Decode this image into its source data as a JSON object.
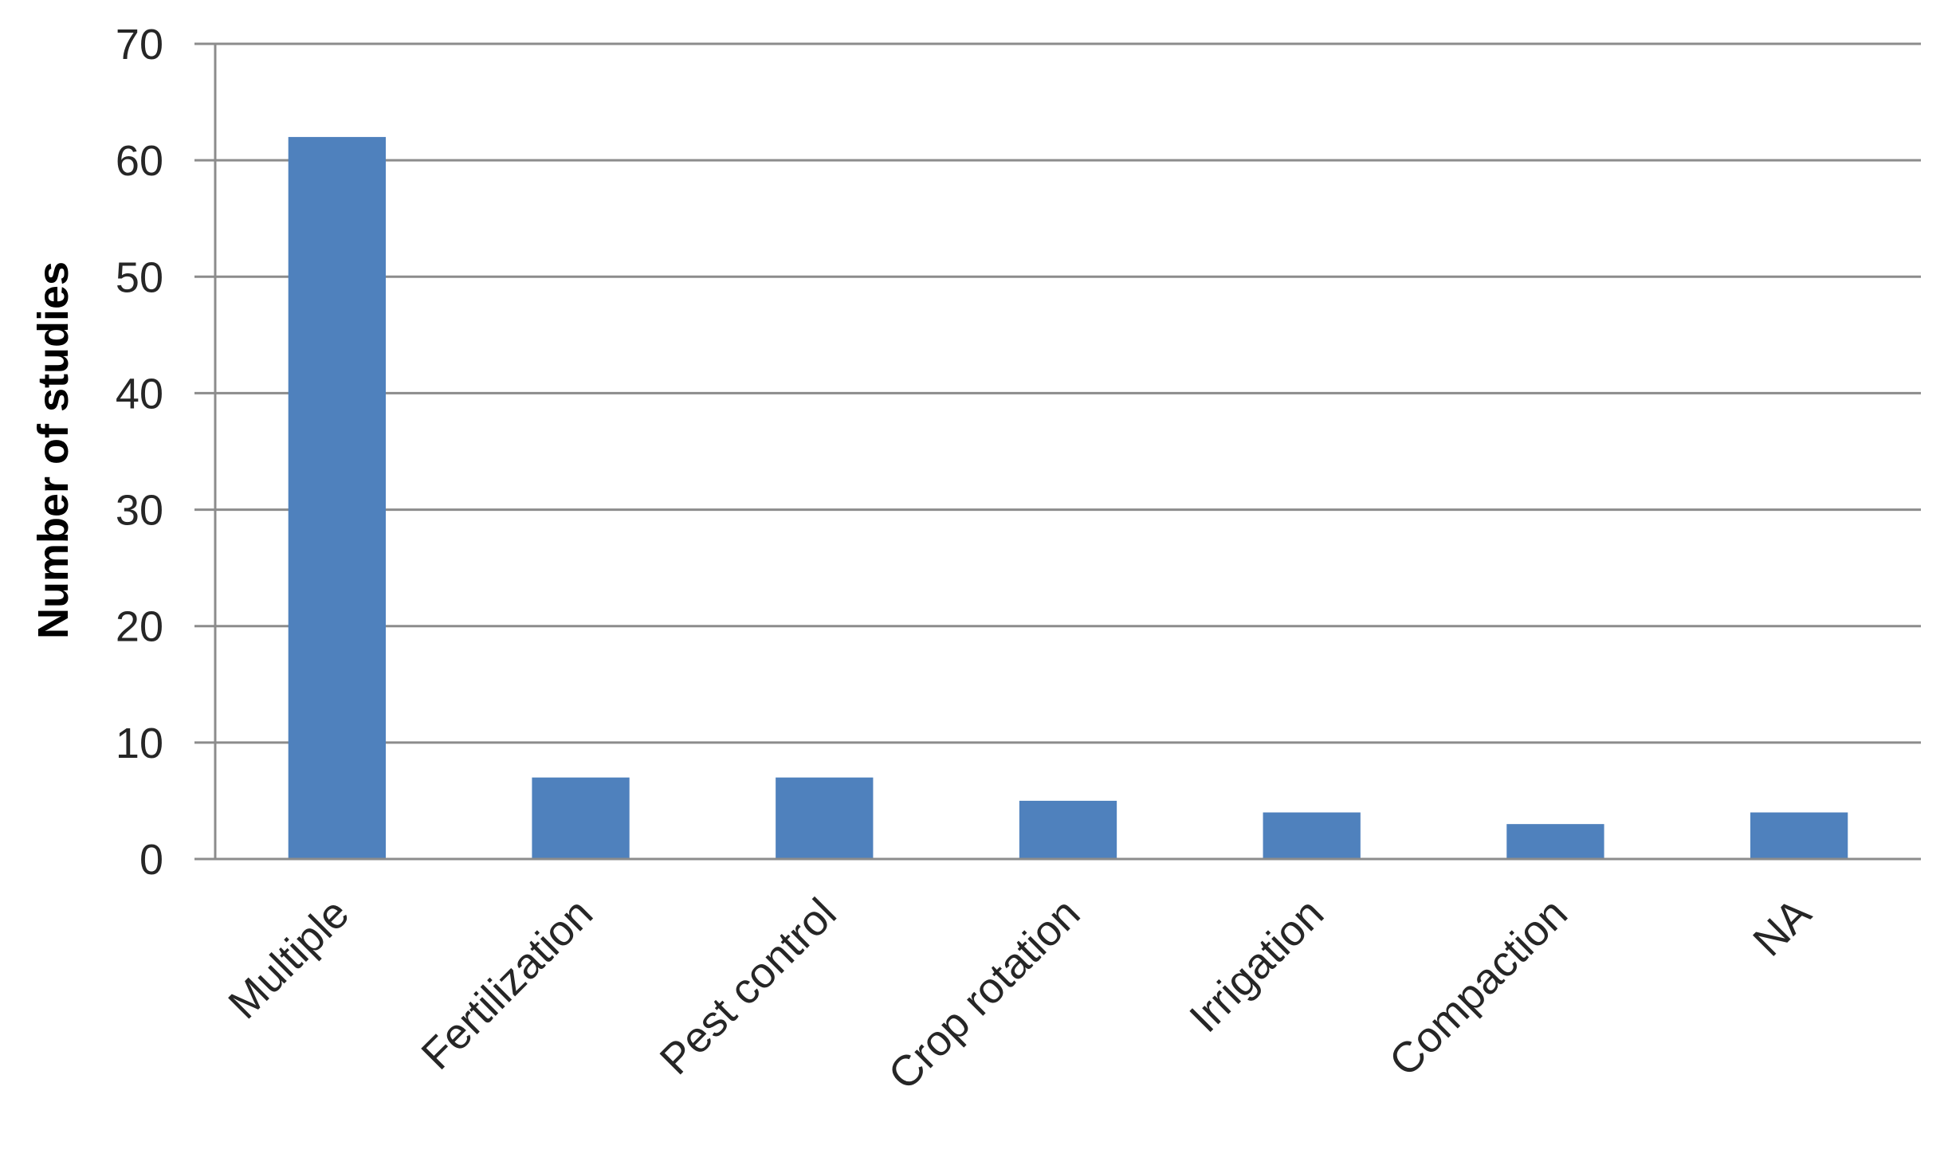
{
  "chart_data": {
    "type": "bar",
    "categories": [
      "Multiple",
      "Fertilization",
      "Pest control",
      "Crop rotation",
      "Irrigation",
      "Compaction",
      "NA"
    ],
    "values": [
      62,
      7,
      7,
      5,
      4,
      3,
      4
    ],
    "title": "",
    "xlabel": "",
    "ylabel": "Number of studies",
    "ylim": [
      0,
      70
    ],
    "yticks": [
      0,
      10,
      20,
      30,
      40,
      50,
      60,
      70
    ],
    "grid": true,
    "legend": "none",
    "bar_color": "#4f81bd"
  }
}
